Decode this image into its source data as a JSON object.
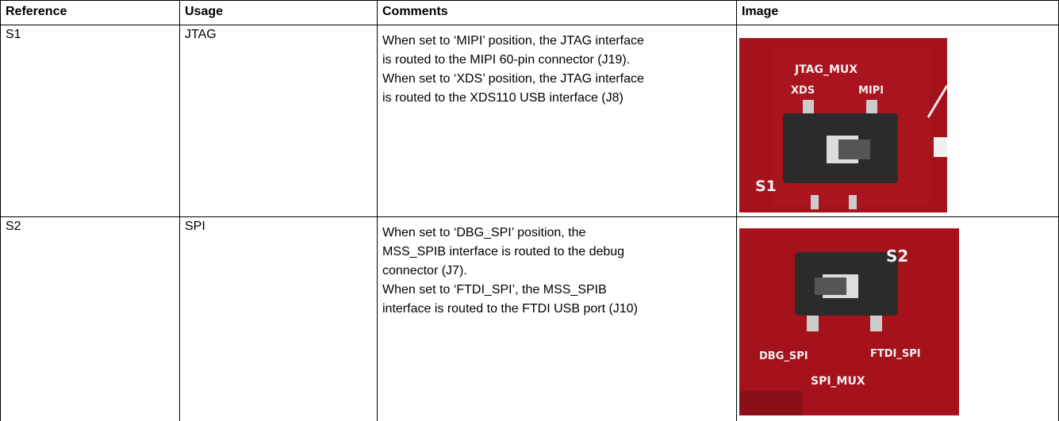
{
  "table": {
    "header": [
      "Reference",
      "Usage",
      "Comments",
      "Image"
    ],
    "rows": [
      {
        "reference": "S1",
        "usage": "JTAG",
        "comments": [
          "When set to ‘MIPI’ position, the JTAG interface",
          "is routed to the MIPI 60-pin connector (J19).",
          "When set to ‘XDS’ position, the JTAG interface",
          "is routed to the XDS110 USB interface (J8)"
        ],
        "image_labels": [
          "JTAG_MUX",
          "XDS",
          "MIPI",
          "S1"
        ]
      },
      {
        "reference": "S2",
        "usage": "SPI",
        "comments": [
          "When set to ‘DBG_SPI’ position, the",
          "MSS_SPIB interface is routed to the debug",
          "connector (J7).",
          "When set to ‘FTDI_SPI’, the MSS_SPIB",
          "interface is routed to the FTDI USB port (J10)"
        ],
        "image_labels": [
          "S2",
          "DBG_SPI",
          "FTDI_SPI",
          "SPI_MUX"
        ]
      }
    ]
  }
}
